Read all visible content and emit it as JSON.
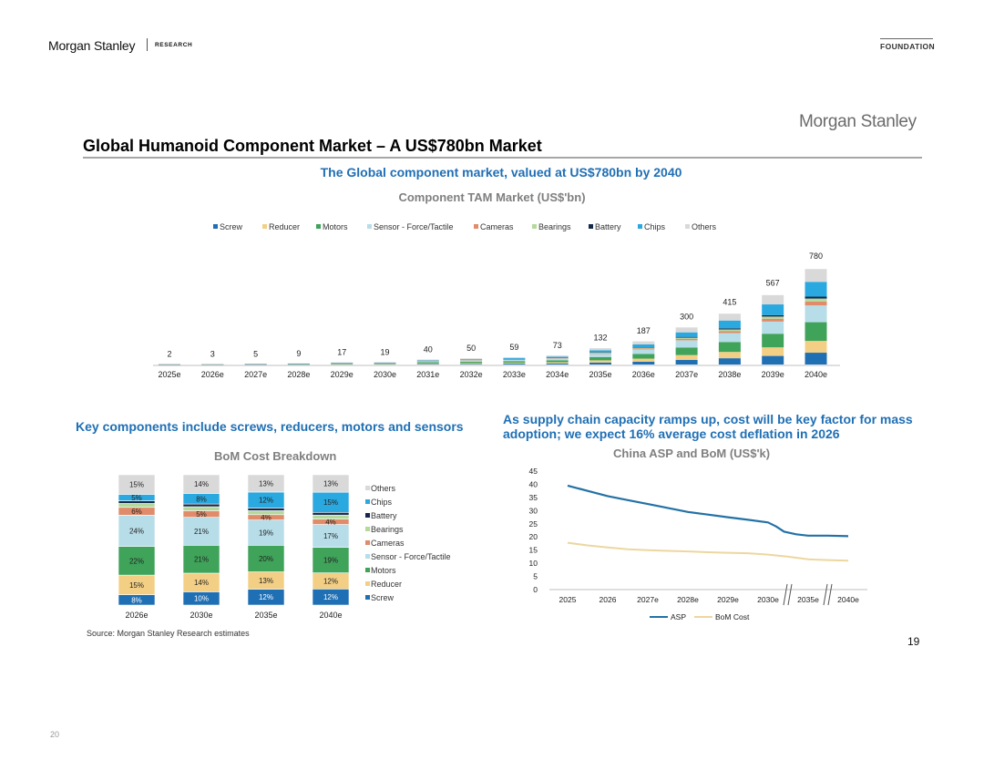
{
  "header": {
    "brand": "Morgan Stanley",
    "research": "RESEARCH",
    "foundation": "FOUNDATION"
  },
  "slide": {
    "brand": "Morgan Stanley",
    "title": "Global Humanoid Component Market – A US$780bn Market",
    "page_number": "19",
    "outer_page_number": "20",
    "source": "Source: Morgan Stanley Research estimates"
  },
  "colors": {
    "Screw": "#1f6fb4",
    "Reducer": "#f3cf85",
    "Motors": "#3fa35a",
    "Sensor": "#b7dde8",
    "Cameras": "#e08b6a",
    "Bearings": "#b5d99c",
    "Battery": "#13294b",
    "Chips": "#2aa8e0",
    "Others": "#d9d9d9",
    "ASP": "#2371a6",
    "BoM": "#ecd79f"
  },
  "chart_data": [
    {
      "type": "bar",
      "stacked": true,
      "subtitle": "The Global component market, valued at US$780bn by 2040",
      "title": "Component TAM Market (US$'bn)",
      "legend_position": "top",
      "categories": [
        "2025e",
        "2026e",
        "2027e",
        "2028e",
        "2029e",
        "2030e",
        "2031e",
        "2032e",
        "2033e",
        "2034e",
        "2035e",
        "2036e",
        "2037e",
        "2038e",
        "2039e",
        "2040e"
      ],
      "totals": [
        2,
        3,
        5,
        9,
        17,
        19,
        40,
        50,
        59,
        73,
        132,
        187,
        300,
        415,
        567,
        780
      ],
      "share_by_year": {
        "2026e": {
          "Screw": 8,
          "Reducer": 15,
          "Motors": 22,
          "Sensor - Force/Tactile": 24,
          "Cameras": 6,
          "Bearings": 3,
          "Battery": 2,
          "Chips": 5,
          "Others": 15
        },
        "2030e": {
          "Screw": 10,
          "Reducer": 14,
          "Motors": 21,
          "Sensor - Force/Tactile": 21,
          "Cameras": 5,
          "Bearings": 3,
          "Battery": 2,
          "Chips": 8,
          "Others": 14
        },
        "2035e": {
          "Screw": 12,
          "Reducer": 13,
          "Motors": 20,
          "Sensor - Force/Tactile": 19,
          "Cameras": 4,
          "Bearings": 3,
          "Battery": 2,
          "Chips": 12,
          "Others": 13
        },
        "2040e": {
          "Screw": 12,
          "Reducer": 12,
          "Motors": 19,
          "Sensor - Force/Tactile": 17,
          "Cameras": 4,
          "Bearings": 3,
          "Battery": 2,
          "Chips": 15,
          "Others": 13
        }
      },
      "legend": [
        "Screw",
        "Reducer",
        "Motors",
        "Sensor - Force/Tactile",
        "Cameras",
        "Bearings",
        "Battery",
        "Chips",
        "Others"
      ]
    },
    {
      "type": "bar",
      "stacked": true,
      "percent": true,
      "subtitle": "Key components include screws, reducers, motors and sensors",
      "title": "BoM Cost Breakdown",
      "legend_position": "right",
      "categories": [
        "2026e",
        "2030e",
        "2035e",
        "2040e"
      ],
      "series": [
        {
          "name": "Screw",
          "values": [
            8,
            10,
            12,
            12
          ],
          "labels": [
            "8%",
            "10%",
            "12%",
            "12%"
          ]
        },
        {
          "name": "Reducer",
          "values": [
            15,
            14,
            13,
            12
          ],
          "labels": [
            "15%",
            "14%",
            "13%",
            "12%"
          ]
        },
        {
          "name": "Motors",
          "values": [
            22,
            21,
            20,
            19
          ],
          "labels": [
            "22%",
            "21%",
            "20%",
            "19%"
          ]
        },
        {
          "name": "Sensor - Force/Tactile",
          "values": [
            24,
            21,
            19,
            17
          ],
          "labels": [
            "24%",
            "21%",
            "19%",
            "17%"
          ]
        },
        {
          "name": "Cameras",
          "values": [
            6,
            5,
            4,
            4
          ],
          "labels": [
            "6%",
            "5%",
            "4%",
            "4%"
          ]
        },
        {
          "name": "Bearings",
          "values": [
            3,
            3,
            3,
            3
          ],
          "labels": [
            "",
            "",
            "",
            ""
          ]
        },
        {
          "name": "Battery",
          "values": [
            2,
            2,
            2,
            2
          ],
          "labels": [
            "",
            "",
            "",
            ""
          ]
        },
        {
          "name": "Chips",
          "values": [
            5,
            8,
            12,
            15
          ],
          "labels": [
            "5%",
            "8%",
            "12%",
            "15%"
          ]
        },
        {
          "name": "Others",
          "values": [
            15,
            14,
            13,
            13
          ],
          "labels": [
            "15%",
            "14%",
            "13%",
            "13%"
          ]
        }
      ],
      "legend": [
        "Others",
        "Chips",
        "Battery",
        "Bearings",
        "Cameras",
        "Sensor - Force/Tactile",
        "Motors",
        "Reducer",
        "Screw"
      ]
    },
    {
      "type": "line",
      "subtitle": "As supply chain capacity ramps up, cost will be key factor for mass adoption; we expect 16% average cost deflation in 2026",
      "title": "China ASP and BoM (US$'k)",
      "legend_position": "bottom",
      "ylim": [
        0,
        45
      ],
      "yticks": [
        0,
        5,
        10,
        15,
        20,
        25,
        30,
        35,
        40,
        45
      ],
      "categories": [
        "2025",
        "2026",
        "2027e",
        "2028e",
        "2029e",
        "2030e",
        "2035e",
        "2040e"
      ],
      "axis_breaks": [
        "2030e-2035e",
        "2035e-2040e"
      ],
      "series": [
        {
          "name": "ASP",
          "x": [
            0,
            0.5,
            1,
            1.5,
            2,
            2.5,
            3,
            3.5,
            4,
            4.5,
            5,
            5.2,
            5.4,
            5.7,
            6,
            6.5,
            7
          ],
          "values": [
            39.5,
            37.5,
            35.5,
            34,
            32.5,
            31,
            29.5,
            28.5,
            27.5,
            26.5,
            25.5,
            24,
            22,
            21,
            20.5,
            20.5,
            20.3
          ]
        },
        {
          "name": "BoM Cost",
          "x": [
            0,
            0.5,
            1,
            1.5,
            2,
            2.5,
            3,
            3.5,
            4,
            4.5,
            5,
            5.5,
            6,
            6.5,
            7
          ],
          "values": [
            17.8,
            16.8,
            16,
            15.3,
            15,
            14.7,
            14.5,
            14.2,
            14,
            13.8,
            13.3,
            12.5,
            11.5,
            11.2,
            11
          ]
        }
      ]
    }
  ]
}
